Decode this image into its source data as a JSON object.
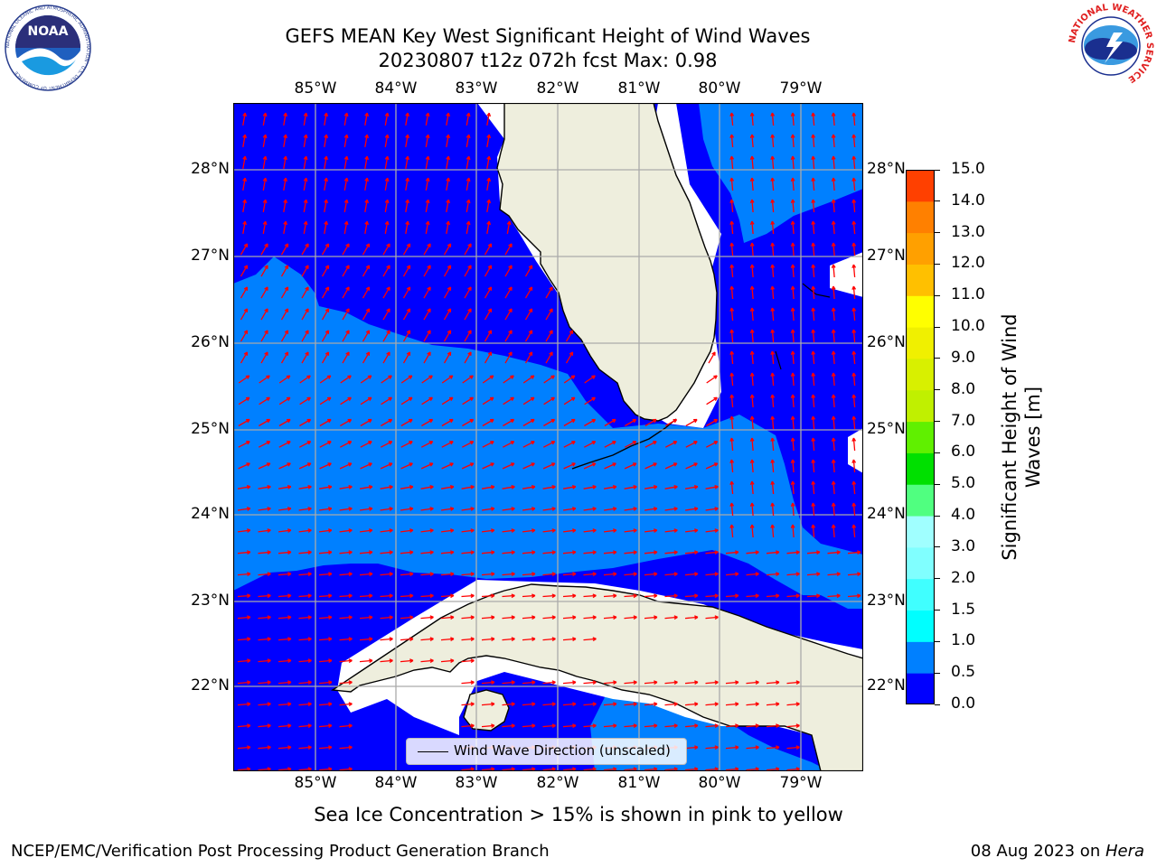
{
  "header": {
    "title_line1": "GEFS MEAN Key West Significant Height of Wind Waves",
    "title_line2": "20230807 t12z 072h fcst   Max: 0.98"
  },
  "logos": {
    "noaa_text": "NOAA",
    "noaa_ring": "NATIONAL OCEANIC AND ATMOSPHERIC ADMINISTRATION · U.S. DEPARTMENT OF COMMERCE",
    "nws_ring": "NATIONAL WEATHER SERVICE"
  },
  "map": {
    "lon_labels": [
      "85°W",
      "84°W",
      "83°W",
      "82°W",
      "81°W",
      "80°W",
      "79°W"
    ],
    "lat_labels": [
      "28°N",
      "27°N",
      "26°N",
      "25°N",
      "24°N",
      "23°N",
      "22°N"
    ],
    "legend_label": "Wind Wave Direction (unscaled)",
    "colors": {
      "ocean_low": "#0000ff",
      "ocean_mid": "#0080ff",
      "land": "#eeeedd",
      "arrows": "#ff0000",
      "grid": "#aaaaaa"
    }
  },
  "colorbar": {
    "title_line1": "Significant Height of Wind",
    "title_line2": "Waves [m]",
    "ticks": [
      "0.0",
      "0.5",
      "1.0",
      "1.5",
      "2.0",
      "3.0",
      "4.0",
      "5.0",
      "6.0",
      "7.0",
      "8.0",
      "9.0",
      "10.0",
      "11.0",
      "12.0",
      "13.0",
      "14.0",
      "15.0"
    ],
    "colors": [
      "#0000ff",
      "#0080ff",
      "#00ffff",
      "#40ffff",
      "#80ffff",
      "#a0ffff",
      "#50ff80",
      "#00e000",
      "#60f000",
      "#c0f000",
      "#d8f000",
      "#f0f000",
      "#ffff00",
      "#ffc000",
      "#ffa000",
      "#ff8000",
      "#ff4000",
      "#ff0000"
    ]
  },
  "subtitle": "Sea Ice Concentration > 15% is shown in pink to yellow",
  "footer": {
    "left": "NCEP/EMC/Verification Post Processing Product Generation Branch",
    "date": "08 Aug 2023 on ",
    "host": "Hera"
  }
}
